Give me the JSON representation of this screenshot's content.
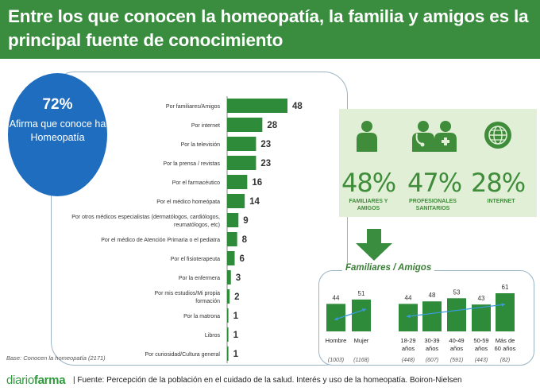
{
  "header": {
    "title": "Entre los que conocen la homeopatía, la familia y amigos es la principal fuente de conocimiento"
  },
  "highlight": {
    "percent": "72%",
    "text": "Afirma que conoce ha Homeopatía"
  },
  "base_note": "Base: Conocen la homeopatía (2171)",
  "colors": {
    "brand_green": "#3a8c3f",
    "bar_green": "#2e8b3a",
    "circle_blue": "#1f6dbf",
    "panel_green": "#e0efd5",
    "arrow_blue": "#3a9ad9"
  },
  "stats": [
    {
      "percent": "48%",
      "label": "FAMILIARES Y AMIGOS",
      "icon": "person-icon"
    },
    {
      "percent": "47%",
      "label": "PROFESIONALES SANITARIOS",
      "icon": "doctors-icon"
    },
    {
      "percent": "28%",
      "label": "INTERNET",
      "icon": "globe-icon"
    }
  ],
  "family_title": "Familiares / Amigos",
  "footer": {
    "brand_light": "diario",
    "brand_bold": "farma",
    "source": "| Fuente: Percepción de la población en el cuidado de la salud. Interés y uso de la homeopatía. Boiron-Nielsen"
  },
  "chart_data": [
    {
      "type": "bar",
      "orientation": "horizontal",
      "categories": [
        "Por familiares/Amigos",
        "Por internet",
        "Por la televisión",
        "Por la prensa / revistas",
        "Por el farmacéutico",
        "Por el médico homeópata",
        "Por otros  médicos especialistas (dermatólogos, cardiólogos, reumatólogos, etc)",
        "Por el médico de Atención Primaria o el pediatra",
        "Por el fisioterapeuta",
        "Por la enfermera",
        "Por mis estudios/Mi propia formación",
        "Por la matrona",
        "Libros",
        "Por curiosidad/Cultura general"
      ],
      "category_lines": [
        [
          "Por familiares/Amigos"
        ],
        [
          "Por internet"
        ],
        [
          "Por la televisión"
        ],
        [
          "Por la prensa / revistas"
        ],
        [
          "Por el farmacéutico"
        ],
        [
          "Por el médico homeópata"
        ],
        [
          "Por otros  médicos especialistas (dermatólogos, cardiólogos,",
          "reumatólogos, etc)"
        ],
        [
          "Por el médico de Atención Primaria o el pediatra"
        ],
        [
          "Por el fisioterapeuta"
        ],
        [
          "Por la enfermera"
        ],
        [
          "Por mis estudios/Mi propia",
          "formación"
        ],
        [
          "Por la matrona"
        ],
        [
          "Libros"
        ],
        [
          "Por curiosidad/Cultura general"
        ]
      ],
      "values": [
        48,
        28,
        23,
        23,
        16,
        14,
        9,
        8,
        6,
        3,
        2,
        1,
        1,
        1
      ],
      "xlim": [
        0,
        48
      ],
      "data_labels": true,
      "grid": false
    },
    {
      "type": "bar",
      "title": "Familiares / Amigos",
      "categories": [
        "Hombre",
        "Mujer",
        "18-29 años",
        "30-39 años",
        "40-49 años",
        "50-59 años",
        "Más de 60 años"
      ],
      "category_lines": [
        [
          "Hombre"
        ],
        [
          "Mujer"
        ],
        [
          "18-29",
          "años"
        ],
        [
          "30-39",
          "años"
        ],
        [
          "40-49",
          "años"
        ],
        [
          "50-59",
          "años"
        ],
        [
          "Más de",
          "60 años"
        ]
      ],
      "values": [
        44,
        51,
        44,
        48,
        53,
        43,
        61
      ],
      "bases": [
        "(1003)",
        "(1168)",
        "(448)",
        "(607)",
        "(591)",
        "(443)",
        "(82)"
      ],
      "groups": [
        [
          "Hombre",
          "Mujer"
        ],
        [
          "18-29 años",
          "30-39 años",
          "40-49 años",
          "50-59 años",
          "Más de 60 años"
        ]
      ],
      "ylim": [
        0,
        61
      ],
      "data_labels": true,
      "grid": false
    }
  ]
}
